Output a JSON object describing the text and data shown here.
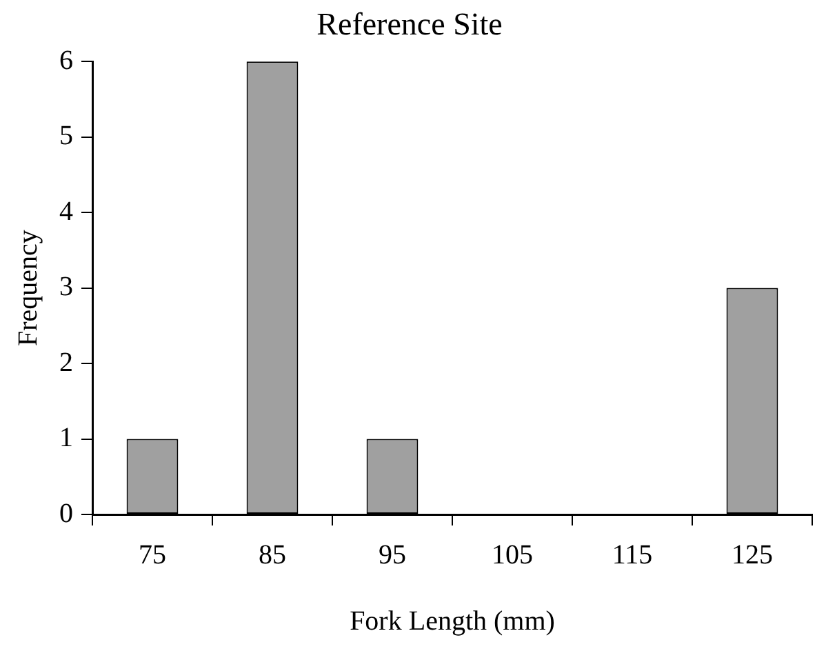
{
  "chart_data": {
    "type": "bar",
    "title": "Reference Site",
    "xlabel": "Fork Length (mm)",
    "ylabel": "Frequency",
    "categories": [
      "75",
      "85",
      "95",
      "105",
      "115",
      "125"
    ],
    "values": [
      1,
      6,
      1,
      0,
      0,
      3
    ],
    "color": "#a0a0a0",
    "ylim": [
      0,
      6
    ],
    "yticks": [
      0,
      1,
      2,
      3,
      4,
      5,
      6
    ],
    "grid": false,
    "legend": false
  }
}
